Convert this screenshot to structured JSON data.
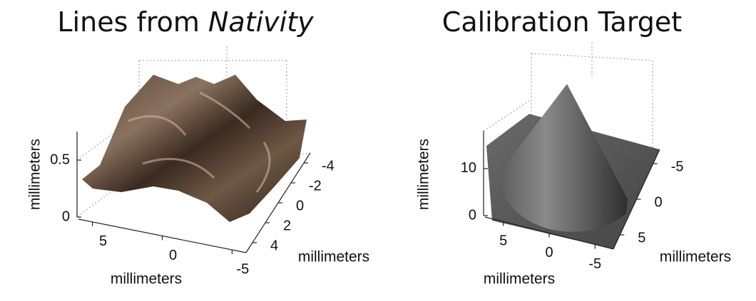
{
  "chart_data": [
    {
      "type": "surface",
      "title": {
        "text": "Lines from",
        "emphasis": "Nativity"
      },
      "xlabel": "millimeters",
      "ylabel": "millimeters",
      "zlabel": "millimeters",
      "xlim": [
        6,
        -6
      ],
      "xticks": [
        5,
        0,
        -5
      ],
      "ylim": [
        5,
        -5
      ],
      "yticks": [
        4,
        2,
        0,
        -2,
        -4
      ],
      "zlim": [
        0,
        0.75
      ],
      "zticks": [
        0,
        0.5
      ]
    },
    {
      "type": "surface",
      "title": {
        "text": "Calibration Target"
      },
      "xlabel": "millimeters",
      "ylabel": "millimeters",
      "zlabel": "millimeters",
      "xlim": [
        7,
        -7
      ],
      "xticks": [
        5,
        0,
        -5
      ],
      "ylim": [
        7,
        -7
      ],
      "yticks": [
        5,
        0,
        -5
      ],
      "zlim": [
        0,
        18
      ],
      "zticks": [
        0,
        10
      ]
    }
  ]
}
